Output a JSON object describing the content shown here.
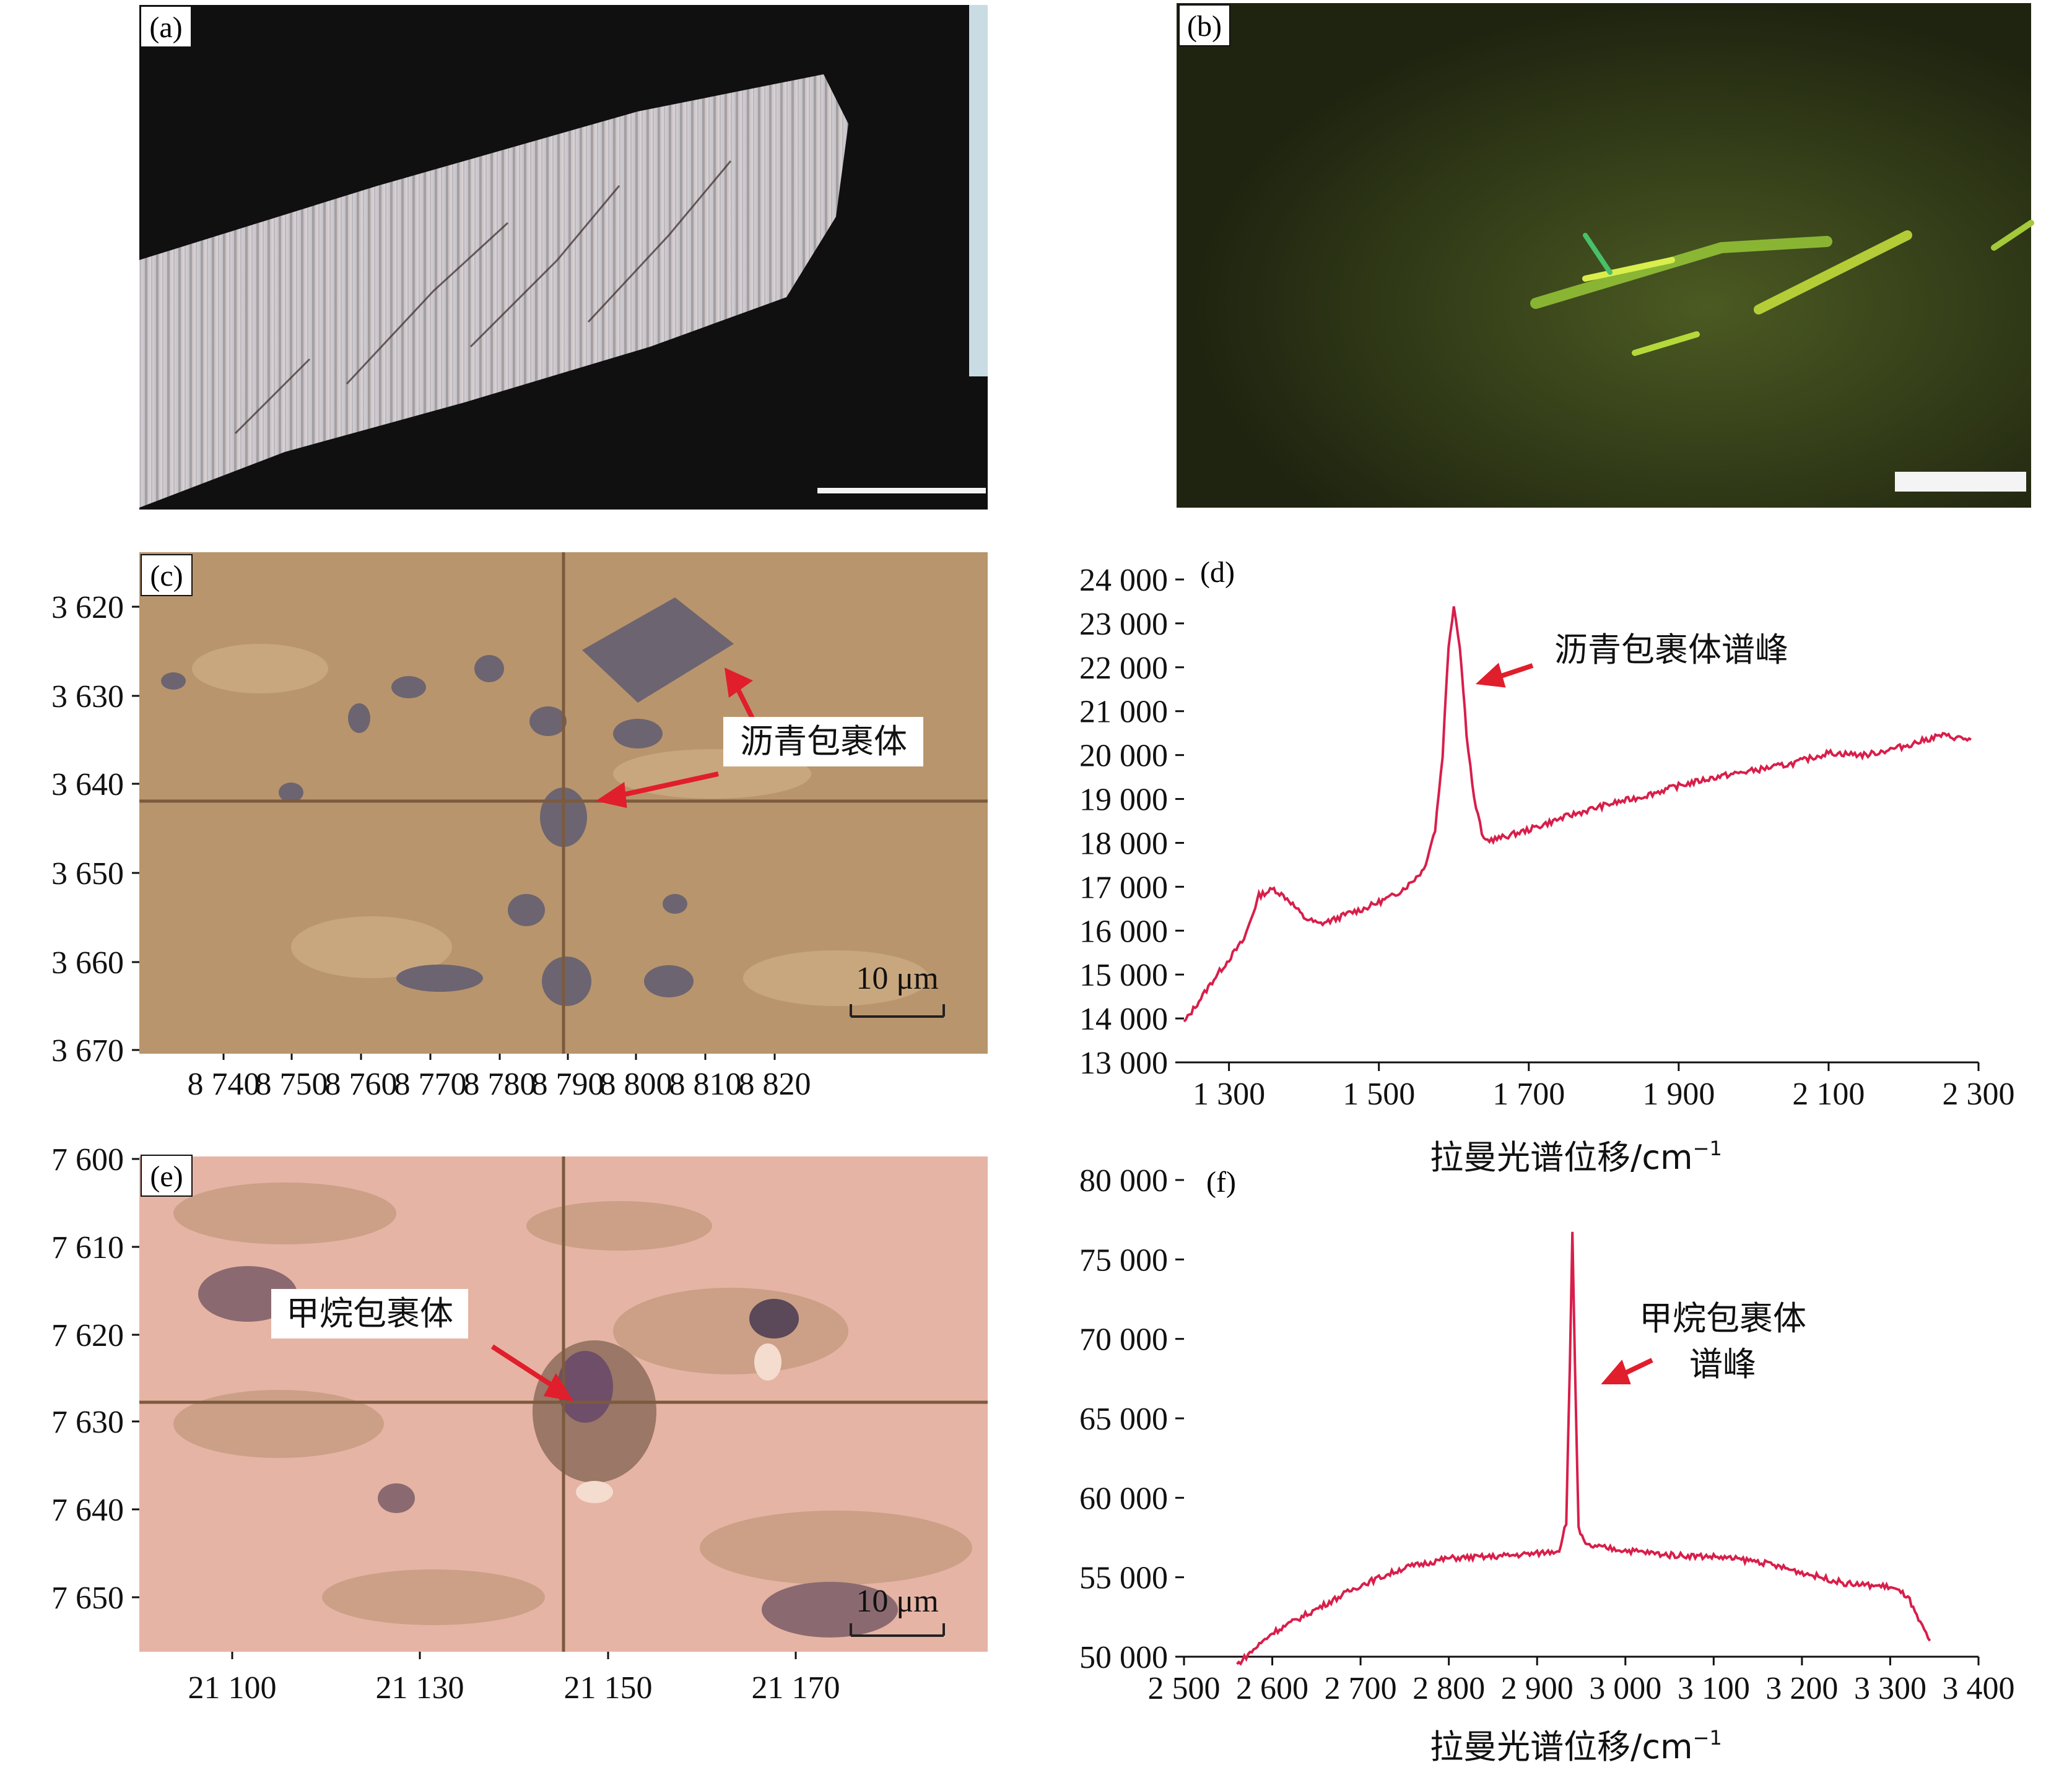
{
  "panels": {
    "a": {
      "label": "(a)"
    },
    "b": {
      "label": "(b)"
    },
    "c": {
      "label": "(c)",
      "annotation": "沥青包裹体",
      "scale_label": "10 μm",
      "x_ticks": [
        "8 740",
        "8 750",
        "8 760",
        "8 770",
        "8 780",
        "8 790",
        "8 800",
        "8 810",
        "8 820"
      ],
      "y_ticks": [
        "3 620",
        "3 630",
        "3 640",
        "3 650",
        "3 660",
        "3 670"
      ]
    },
    "e": {
      "label": "(e)",
      "annotation": "甲烷包裹体",
      "scale_label": "10 μm",
      "x_ticks": [
        "21 100",
        "21 130",
        "21 150",
        "21 170"
      ],
      "y_ticks": [
        "7 600",
        "7 610",
        "7 620",
        "7 630",
        "7 640",
        "7 650"
      ]
    }
  },
  "chart_data": [
    {
      "panel": "(d)",
      "type": "line",
      "xlabel": "拉曼光谱位移/cm",
      "xlabel_sup": "−1",
      "annotation": "沥青包裹体谱峰",
      "xlim": [
        1240,
        2300
      ],
      "ylim": [
        13000,
        24000
      ],
      "x_ticks": [
        "1 300",
        "1 500",
        "1 700",
        "1 900",
        "2 100",
        "2 300"
      ],
      "y_ticks": [
        "24 000",
        "23 000",
        "22 000",
        "21 000",
        "20 000",
        "19 000",
        "18 000",
        "17 000",
        "16 000",
        "15 000",
        "14 000",
        "13 000"
      ],
      "series_color": "#d81e4a",
      "points": [
        [
          1240,
          13900
        ],
        [
          1280,
          14900
        ],
        [
          1320,
          15800
        ],
        [
          1340,
          16800
        ],
        [
          1360,
          16950
        ],
        [
          1380,
          16700
        ],
        [
          1400,
          16300
        ],
        [
          1420,
          16150
        ],
        [
          1440,
          16250
        ],
        [
          1460,
          16400
        ],
        [
          1480,
          16500
        ],
        [
          1500,
          16650
        ],
        [
          1520,
          16800
        ],
        [
          1540,
          17050
        ],
        [
          1560,
          17400
        ],
        [
          1575,
          18300
        ],
        [
          1585,
          20000
        ],
        [
          1593,
          22500
        ],
        [
          1600,
          23400
        ],
        [
          1608,
          22500
        ],
        [
          1617,
          20500
        ],
        [
          1627,
          19000
        ],
        [
          1640,
          18050
        ],
        [
          1660,
          18100
        ],
        [
          1700,
          18300
        ],
        [
          1750,
          18600
        ],
        [
          1800,
          18850
        ],
        [
          1850,
          19050
        ],
        [
          1900,
          19300
        ],
        [
          1950,
          19500
        ],
        [
          2000,
          19650
        ],
        [
          2050,
          19800
        ],
        [
          2100,
          20050
        ],
        [
          2150,
          20000
        ],
        [
          2200,
          20200
        ],
        [
          2250,
          20450
        ],
        [
          2290,
          20350
        ]
      ]
    },
    {
      "panel": "(f)",
      "type": "line",
      "xlabel": "拉曼光谱位移/cm",
      "xlabel_sup": "−1",
      "annotation": [
        "甲烷包裹体",
        "谱峰"
      ],
      "xlim": [
        2500,
        3400
      ],
      "ylim": [
        50000,
        80000
      ],
      "x_ticks": [
        "2 500",
        "2 600",
        "2 700",
        "2 800",
        "2 900",
        "3 000",
        "3 100",
        "3 200",
        "3 300",
        "3 400"
      ],
      "y_ticks": [
        "80 000",
        "75 000",
        "70 000",
        "65 000",
        "60 000",
        "55 000",
        "50 000"
      ],
      "series_color": "#d81e4a",
      "points": [
        [
          2560,
          49500
        ],
        [
          2600,
          51500
        ],
        [
          2650,
          53000
        ],
        [
          2700,
          54500
        ],
        [
          2750,
          55600
        ],
        [
          2800,
          56200
        ],
        [
          2850,
          56300
        ],
        [
          2900,
          56500
        ],
        [
          2925,
          56700
        ],
        [
          2933,
          58500
        ],
        [
          2937,
          68000
        ],
        [
          2940,
          76800
        ],
        [
          2943,
          68000
        ],
        [
          2947,
          58000
        ],
        [
          2955,
          57000
        ],
        [
          3000,
          56700
        ],
        [
          3050,
          56400
        ],
        [
          3100,
          56300
        ],
        [
          3150,
          56000
        ],
        [
          3200,
          55300
        ],
        [
          3250,
          54600
        ],
        [
          3300,
          54400
        ],
        [
          3320,
          53800
        ],
        [
          3330,
          52500
        ],
        [
          3345,
          51000
        ]
      ]
    }
  ]
}
